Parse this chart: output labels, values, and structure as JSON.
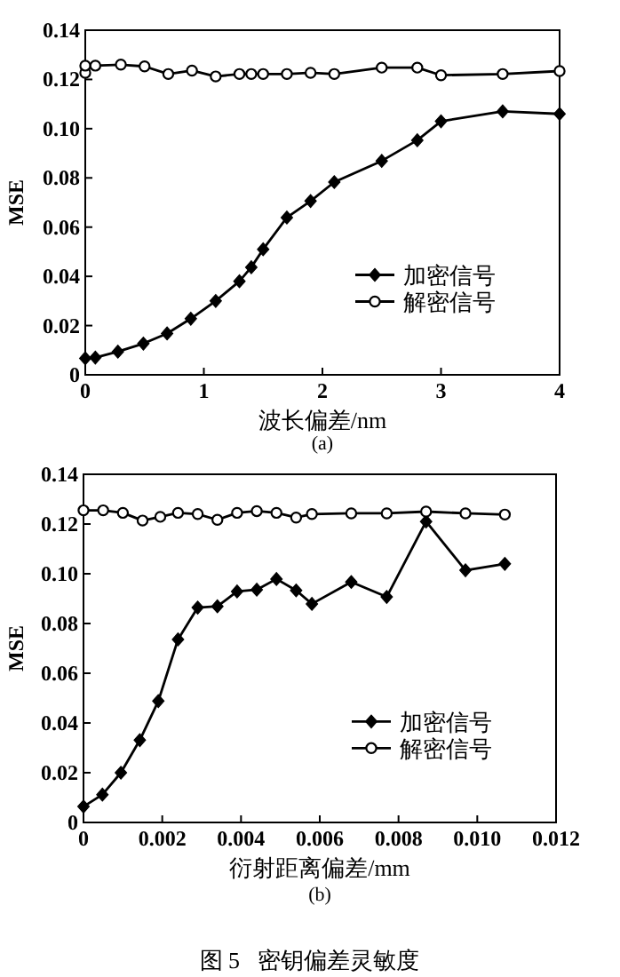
{
  "chart_data": [
    {
      "type": "line",
      "xlabel": "波长偏差/nm",
      "ylabel": "MSE",
      "annotations": [
        "(a)"
      ],
      "legend": "right",
      "xlim": [
        0,
        4
      ],
      "xticks": [
        0,
        1,
        2,
        3,
        4
      ],
      "ylim": [
        0,
        0.14
      ],
      "yticks": [
        0,
        0.02,
        0.04,
        0.06,
        0.08,
        {
          "value": 0.1,
          "label": "0.10"
        },
        {
          "value": 0.12,
          "label": "0.12"
        },
        {
          "value": 0.14,
          "label": "0.14"
        }
      ],
      "series": [
        {
          "name": "加密信号",
          "color": "#000000",
          "marker": "diamond",
          "x": [
            0,
            0.085,
            0.275,
            0.49,
            0.69,
            0.89,
            1.1,
            1.3,
            1.4,
            1.5,
            1.7,
            1.9,
            2.1,
            2.5,
            2.8,
            3.0,
            3.52,
            4.0
          ],
          "values": [
            0.0067,
            0.007,
            0.0094,
            0.0127,
            0.0168,
            0.0228,
            0.03,
            0.038,
            0.0437,
            0.051,
            0.0639,
            0.0706,
            0.0783,
            0.0869,
            0.0953,
            0.103,
            0.107,
            0.106
          ]
        },
        {
          "name": "解密信号",
          "color": "#000000",
          "marker": "circle",
          "x": [
            0,
            0,
            0.085,
            0.3,
            0.5,
            0.7,
            0.9,
            1.1,
            1.3,
            1.4,
            1.5,
            1.7,
            1.9,
            2.1,
            2.5,
            2.8,
            3.0,
            3.52,
            4.0
          ],
          "values": [
            0.1227,
            0.1256,
            0.1256,
            0.126,
            0.1253,
            0.1222,
            0.1236,
            0.1212,
            0.1222,
            0.1222,
            0.1222,
            0.1222,
            0.1227,
            0.1222,
            0.1248,
            0.1248,
            0.1217,
            0.1222,
            0.1234
          ]
        }
      ]
    },
    {
      "type": "line",
      "xlabel": "衍射距离偏差/mm",
      "ylabel": "MSE",
      "annotations": [
        "(b)",
        "图 5   密钥偏差灵敏度"
      ],
      "legend": "right",
      "xlim": [
        0,
        0.012
      ],
      "xticks": [
        0,
        0.002,
        0.004,
        0.006,
        0.008,
        {
          "value": 0.01,
          "label": "0.010"
        },
        0.012
      ],
      "ylim": [
        0,
        0.14
      ],
      "yticks": [
        0,
        0.02,
        0.04,
        0.06,
        0.08,
        {
          "value": 0.1,
          "label": "0.10"
        },
        {
          "value": 0.12,
          "label": "0.12"
        },
        {
          "value": 0.14,
          "label": "0.14"
        }
      ],
      "series": [
        {
          "name": "加密信号",
          "color": "#000000",
          "marker": "diamond",
          "x": [
            0,
            0.00048,
            0.00095,
            0.00143,
            0.0019,
            0.0024,
            0.0029,
            0.0034,
            0.0039,
            0.0044,
            0.0049,
            0.0054,
            0.0058,
            0.0068,
            0.0077,
            0.0087,
            0.0097,
            0.0107
          ],
          "values": [
            0.0064,
            0.0112,
            0.02,
            0.0331,
            0.0488,
            0.0736,
            0.0864,
            0.0869,
            0.0929,
            0.0936,
            0.0979,
            0.0933,
            0.0879,
            0.0967,
            0.0907,
            0.121,
            0.1014,
            0.104
          ]
        },
        {
          "name": "解密信号",
          "color": "#000000",
          "marker": "circle",
          "x": [
            0,
            0.0005,
            0.001,
            0.0015,
            0.00195,
            0.0024,
            0.0029,
            0.0034,
            0.0039,
            0.0044,
            0.0049,
            0.0054,
            0.0058,
            0.0068,
            0.0077,
            0.0087,
            0.0097,
            0.0107
          ],
          "values": [
            0.1255,
            0.1255,
            0.1245,
            0.1214,
            0.1229,
            0.1245,
            0.124,
            0.1217,
            0.1245,
            0.1252,
            0.1245,
            0.1226,
            0.124,
            0.1243,
            0.1243,
            0.125,
            0.1243,
            0.1238
          ]
        }
      ]
    }
  ]
}
